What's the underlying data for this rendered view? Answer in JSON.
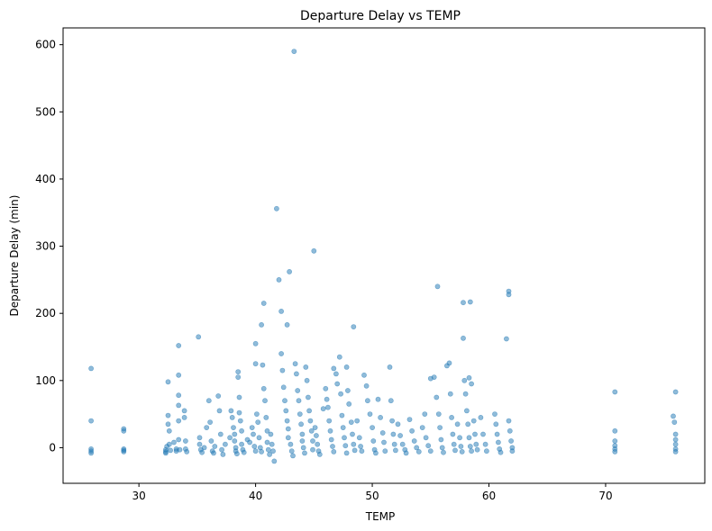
{
  "chart_data": {
    "type": "scatter",
    "title": "Departure Delay vs TEMP",
    "xlabel": "TEMP",
    "ylabel": "Departure Delay (min)",
    "xlim": [
      23.5,
      78.5
    ],
    "ylim": [
      -53,
      625
    ],
    "xticks": [
      30,
      40,
      50,
      60,
      70
    ],
    "yticks": [
      0,
      100,
      200,
      300,
      400,
      500,
      600
    ],
    "grid": false,
    "legend": "none",
    "marker_color": "#1f77b4",
    "marker_alpha": 0.5,
    "points": [
      [
        25.9,
        118
      ],
      [
        25.9,
        40
      ],
      [
        25.9,
        -2
      ],
      [
        25.9,
        -5
      ],
      [
        25.9,
        -8
      ],
      [
        28.7,
        28
      ],
      [
        28.7,
        25
      ],
      [
        28.7,
        -2
      ],
      [
        28.7,
        -4
      ],
      [
        28.7,
        -6
      ],
      [
        32.3,
        -3
      ],
      [
        32.3,
        -6
      ],
      [
        32.3,
        -8
      ],
      [
        32.4,
        2
      ],
      [
        32.5,
        98
      ],
      [
        32.5,
        48
      ],
      [
        32.5,
        35
      ],
      [
        32.6,
        25
      ],
      [
        32.6,
        5
      ],
      [
        32.7,
        -4
      ],
      [
        33.0,
        8
      ],
      [
        33.2,
        -2
      ],
      [
        33.2,
        -5
      ],
      [
        33.4,
        152
      ],
      [
        33.4,
        108
      ],
      [
        33.4,
        78
      ],
      [
        33.4,
        63
      ],
      [
        33.4,
        40
      ],
      [
        33.4,
        12
      ],
      [
        33.5,
        -3
      ],
      [
        33.9,
        55
      ],
      [
        33.9,
        45
      ],
      [
        34.0,
        10
      ],
      [
        34.0,
        -2
      ],
      [
        34.1,
        -6
      ],
      [
        35.1,
        165
      ],
      [
        35.2,
        15
      ],
      [
        35.2,
        5
      ],
      [
        35.3,
        -3
      ],
      [
        35.4,
        -7
      ],
      [
        35.6,
        0
      ],
      [
        35.8,
        30
      ],
      [
        36.0,
        70
      ],
      [
        36.1,
        38
      ],
      [
        36.2,
        10
      ],
      [
        36.3,
        -5
      ],
      [
        36.4,
        -8
      ],
      [
        36.5,
        2
      ],
      [
        36.8,
        77
      ],
      [
        36.9,
        55
      ],
      [
        37.0,
        20
      ],
      [
        37.1,
        -3
      ],
      [
        37.2,
        -10
      ],
      [
        37.4,
        5
      ],
      [
        37.8,
        15
      ],
      [
        37.9,
        55
      ],
      [
        38.0,
        45
      ],
      [
        38.1,
        30
      ],
      [
        38.2,
        20
      ],
      [
        38.2,
        10
      ],
      [
        38.3,
        0
      ],
      [
        38.3,
        -5
      ],
      [
        38.4,
        -9
      ],
      [
        38.5,
        113
      ],
      [
        38.5,
        105
      ],
      [
        38.6,
        75
      ],
      [
        38.6,
        52
      ],
      [
        38.7,
        40
      ],
      [
        38.8,
        25
      ],
      [
        38.8,
        5
      ],
      [
        38.9,
        -3
      ],
      [
        39.0,
        -7
      ],
      [
        39.3,
        12
      ],
      [
        39.5,
        8
      ],
      [
        39.7,
        30
      ],
      [
        39.8,
        20
      ],
      [
        39.9,
        2
      ],
      [
        40.0,
        -5
      ],
      [
        40.0,
        155
      ],
      [
        40.0,
        125
      ],
      [
        40.1,
        50
      ],
      [
        40.2,
        38
      ],
      [
        40.3,
        15
      ],
      [
        40.4,
        0
      ],
      [
        40.5,
        -6
      ],
      [
        40.5,
        183
      ],
      [
        40.6,
        123
      ],
      [
        40.7,
        88
      ],
      [
        40.8,
        70
      ],
      [
        40.9,
        45
      ],
      [
        41.0,
        25
      ],
      [
        41.0,
        8
      ],
      [
        41.1,
        -3
      ],
      [
        41.2,
        -10
      ],
      [
        40.7,
        215
      ],
      [
        41.3,
        20
      ],
      [
        41.4,
        5
      ],
      [
        41.5,
        -5
      ],
      [
        41.6,
        -20
      ],
      [
        41.8,
        356
      ],
      [
        42.0,
        250
      ],
      [
        42.2,
        140
      ],
      [
        42.3,
        115
      ],
      [
        42.4,
        90
      ],
      [
        42.5,
        70
      ],
      [
        42.6,
        55
      ],
      [
        42.7,
        40
      ],
      [
        42.8,
        28
      ],
      [
        42.8,
        15
      ],
      [
        42.2,
        203
      ],
      [
        42.7,
        183
      ],
      [
        42.9,
        262
      ],
      [
        43.0,
        5
      ],
      [
        43.1,
        -5
      ],
      [
        43.2,
        -12
      ],
      [
        43.3,
        590
      ],
      [
        43.4,
        125
      ],
      [
        43.5,
        110
      ],
      [
        43.6,
        85
      ],
      [
        43.7,
        70
      ],
      [
        43.8,
        50
      ],
      [
        43.9,
        35
      ],
      [
        44.0,
        20
      ],
      [
        44.0,
        10
      ],
      [
        44.1,
        0
      ],
      [
        44.2,
        -8
      ],
      [
        44.3,
        120
      ],
      [
        44.4,
        100
      ],
      [
        44.5,
        75
      ],
      [
        44.6,
        55
      ],
      [
        44.7,
        40
      ],
      [
        44.8,
        25
      ],
      [
        44.9,
        10
      ],
      [
        44.9,
        -3
      ],
      [
        45.0,
        293
      ],
      [
        45.1,
        30
      ],
      [
        45.2,
        18
      ],
      [
        45.3,
        5
      ],
      [
        45.4,
        -5
      ],
      [
        45.5,
        -10
      ],
      [
        45.8,
        58
      ],
      [
        46.0,
        88
      ],
      [
        46.1,
        72
      ],
      [
        46.2,
        60
      ],
      [
        46.3,
        40
      ],
      [
        46.4,
        25
      ],
      [
        46.5,
        12
      ],
      [
        46.6,
        2
      ],
      [
        46.7,
        -6
      ],
      [
        46.7,
        118
      ],
      [
        46.9,
        110
      ],
      [
        47.0,
        95
      ],
      [
        47.2,
        135
      ],
      [
        47.3,
        80
      ],
      [
        47.4,
        48
      ],
      [
        47.5,
        30
      ],
      [
        47.6,
        15
      ],
      [
        47.7,
        3
      ],
      [
        47.8,
        -8
      ],
      [
        47.8,
        120
      ],
      [
        47.9,
        85
      ],
      [
        48.0,
        65
      ],
      [
        48.2,
        38
      ],
      [
        48.3,
        20
      ],
      [
        48.4,
        5
      ],
      [
        48.5,
        -4
      ],
      [
        48.4,
        180
      ],
      [
        48.7,
        40
      ],
      [
        48.9,
        15
      ],
      [
        49.0,
        2
      ],
      [
        49.1,
        -5
      ],
      [
        49.3,
        108
      ],
      [
        49.5,
        92
      ],
      [
        49.6,
        70
      ],
      [
        49.8,
        50
      ],
      [
        50.0,
        30
      ],
      [
        50.1,
        10
      ],
      [
        50.2,
        -3
      ],
      [
        50.3,
        -8
      ],
      [
        50.5,
        72
      ],
      [
        50.7,
        45
      ],
      [
        50.9,
        22
      ],
      [
        51.0,
        8
      ],
      [
        51.1,
        -5
      ],
      [
        51.5,
        120
      ],
      [
        51.6,
        70
      ],
      [
        51.7,
        40
      ],
      [
        51.8,
        20
      ],
      [
        51.9,
        5
      ],
      [
        52.0,
        -4
      ],
      [
        52.2,
        35
      ],
      [
        52.4,
        18
      ],
      [
        52.6,
        5
      ],
      [
        52.8,
        -3
      ],
      [
        52.9,
        -8
      ],
      [
        53.2,
        42
      ],
      [
        53.4,
        25
      ],
      [
        53.6,
        10
      ],
      [
        53.8,
        0
      ],
      [
        54.0,
        -6
      ],
      [
        54.3,
        30
      ],
      [
        54.5,
        50
      ],
      [
        54.6,
        15
      ],
      [
        54.8,
        3
      ],
      [
        55.0,
        -5
      ],
      [
        55.0,
        103
      ],
      [
        55.3,
        105
      ],
      [
        55.5,
        75
      ],
      [
        55.6,
        240
      ],
      [
        55.7,
        50
      ],
      [
        55.8,
        30
      ],
      [
        55.9,
        12
      ],
      [
        56.0,
        0
      ],
      [
        56.1,
        -7
      ],
      [
        56.4,
        122
      ],
      [
        56.6,
        126
      ],
      [
        56.7,
        80
      ],
      [
        56.8,
        45
      ],
      [
        56.9,
        20
      ],
      [
        57.0,
        5
      ],
      [
        57.1,
        -4
      ],
      [
        57.3,
        35
      ],
      [
        57.5,
        15
      ],
      [
        57.6,
        2
      ],
      [
        57.7,
        -6
      ],
      [
        57.8,
        216
      ],
      [
        57.8,
        163
      ],
      [
        57.9,
        100
      ],
      [
        58.0,
        80
      ],
      [
        58.1,
        55
      ],
      [
        58.2,
        35
      ],
      [
        58.3,
        15
      ],
      [
        58.4,
        2
      ],
      [
        58.5,
        -5
      ],
      [
        58.4,
        217
      ],
      [
        58.3,
        104
      ],
      [
        58.5,
        95
      ],
      [
        58.7,
        40
      ],
      [
        58.8,
        20
      ],
      [
        58.9,
        5
      ],
      [
        59.0,
        -3
      ],
      [
        59.3,
        45
      ],
      [
        59.5,
        20
      ],
      [
        59.7,
        5
      ],
      [
        59.8,
        -5
      ],
      [
        60.5,
        50
      ],
      [
        60.6,
        35
      ],
      [
        60.7,
        20
      ],
      [
        60.8,
        8
      ],
      [
        60.9,
        -2
      ],
      [
        61.0,
        -7
      ],
      [
        61.5,
        162
      ],
      [
        61.7,
        233
      ],
      [
        61.7,
        228
      ],
      [
        61.7,
        40
      ],
      [
        61.8,
        25
      ],
      [
        61.9,
        10
      ],
      [
        62.0,
        0
      ],
      [
        62.0,
        -5
      ],
      [
        70.8,
        83
      ],
      [
        70.8,
        25
      ],
      [
        70.8,
        10
      ],
      [
        70.8,
        3
      ],
      [
        70.8,
        -2
      ],
      [
        70.8,
        -6
      ],
      [
        75.8,
        47
      ],
      [
        75.9,
        38
      ],
      [
        76.0,
        83
      ],
      [
        76.0,
        20
      ],
      [
        76.0,
        12
      ],
      [
        76.0,
        5
      ],
      [
        76.0,
        -2
      ],
      [
        76.0,
        -6
      ]
    ]
  }
}
